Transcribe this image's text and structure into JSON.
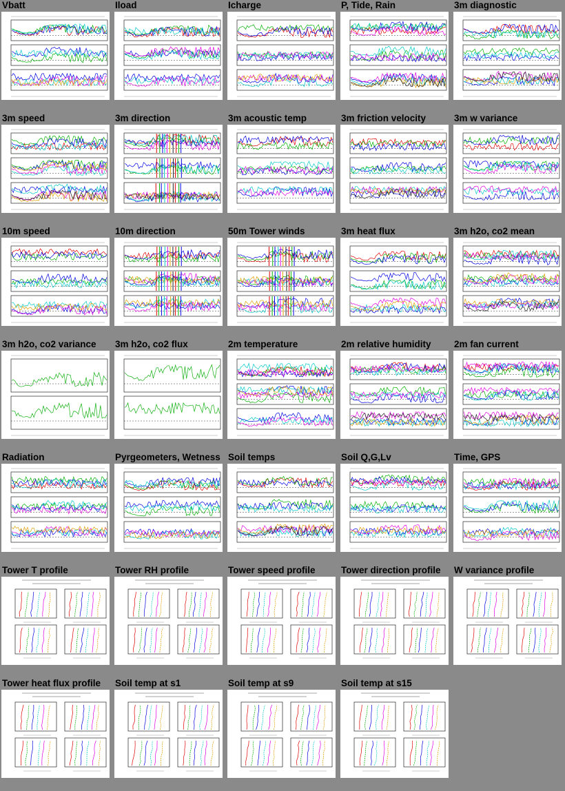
{
  "page": {
    "background": "#8a8a8a"
  },
  "thumbnails": [
    {
      "label": "Vbatt",
      "kind": "ts",
      "panels": 3
    },
    {
      "label": "Iload",
      "kind": "ts",
      "panels": 3
    },
    {
      "label": "Icharge",
      "kind": "ts",
      "panels": 3
    },
    {
      "label": "P, Tide, Rain",
      "kind": "ts",
      "panels": 3
    },
    {
      "label": "3m diagnostic",
      "kind": "ts",
      "panels": 3
    },
    {
      "label": "3m speed",
      "kind": "ts",
      "panels": 3
    },
    {
      "label": "3m direction",
      "kind": "dir",
      "panels": 3
    },
    {
      "label": "3m acoustic temp",
      "kind": "ts",
      "panels": 3
    },
    {
      "label": "3m friction velocity",
      "kind": "ts",
      "panels": 3
    },
    {
      "label": "3m w variance",
      "kind": "ts",
      "panels": 3
    },
    {
      "label": "10m speed",
      "kind": "ts",
      "panels": 3
    },
    {
      "label": "10m direction",
      "kind": "dir",
      "panels": 3
    },
    {
      "label": "50m Tower winds",
      "kind": "dir",
      "panels": 3
    },
    {
      "label": "3m heat flux",
      "kind": "ts",
      "panels": 3
    },
    {
      "label": "3m h2o, co2 mean",
      "kind": "ts",
      "panels": 3
    },
    {
      "label": "3m h2o, co2 variance",
      "kind": "ts2",
      "panels": 2
    },
    {
      "label": "3m h2o, co2 flux",
      "kind": "ts2",
      "panels": 2
    },
    {
      "label": "2m temperature",
      "kind": "ts",
      "panels": 3
    },
    {
      "label": "2m relative humidity",
      "kind": "ts",
      "panels": 3
    },
    {
      "label": "2m fan current",
      "kind": "ts",
      "panels": 3
    },
    {
      "label": "Radiation",
      "kind": "ts",
      "panels": 3
    },
    {
      "label": "Pyrgeometers, Wetness",
      "kind": "ts",
      "panels": 3
    },
    {
      "label": "Soil temps",
      "kind": "ts",
      "panels": 3
    },
    {
      "label": "Soil Q,G,Lv",
      "kind": "ts",
      "panels": 3
    },
    {
      "label": "Time, GPS",
      "kind": "ts",
      "panels": 3
    },
    {
      "label": "Tower T profile",
      "kind": "prof"
    },
    {
      "label": "Tower RH profile",
      "kind": "prof"
    },
    {
      "label": "Tower speed profile",
      "kind": "prof"
    },
    {
      "label": "Tower direction profile",
      "kind": "prof"
    },
    {
      "label": "W variance profile",
      "kind": "prof"
    },
    {
      "label": "Tower heat flux profile",
      "kind": "prof"
    },
    {
      "label": "Soil temp at s1",
      "kind": "prof"
    },
    {
      "label": "Soil temp at s9",
      "kind": "prof"
    },
    {
      "label": "Soil temp at s15",
      "kind": "prof"
    }
  ],
  "line_colors": [
    "#e00000",
    "#00b000",
    "#0000e0",
    "#00c8c8",
    "#e000e0",
    "#e0a000",
    "#202020"
  ]
}
